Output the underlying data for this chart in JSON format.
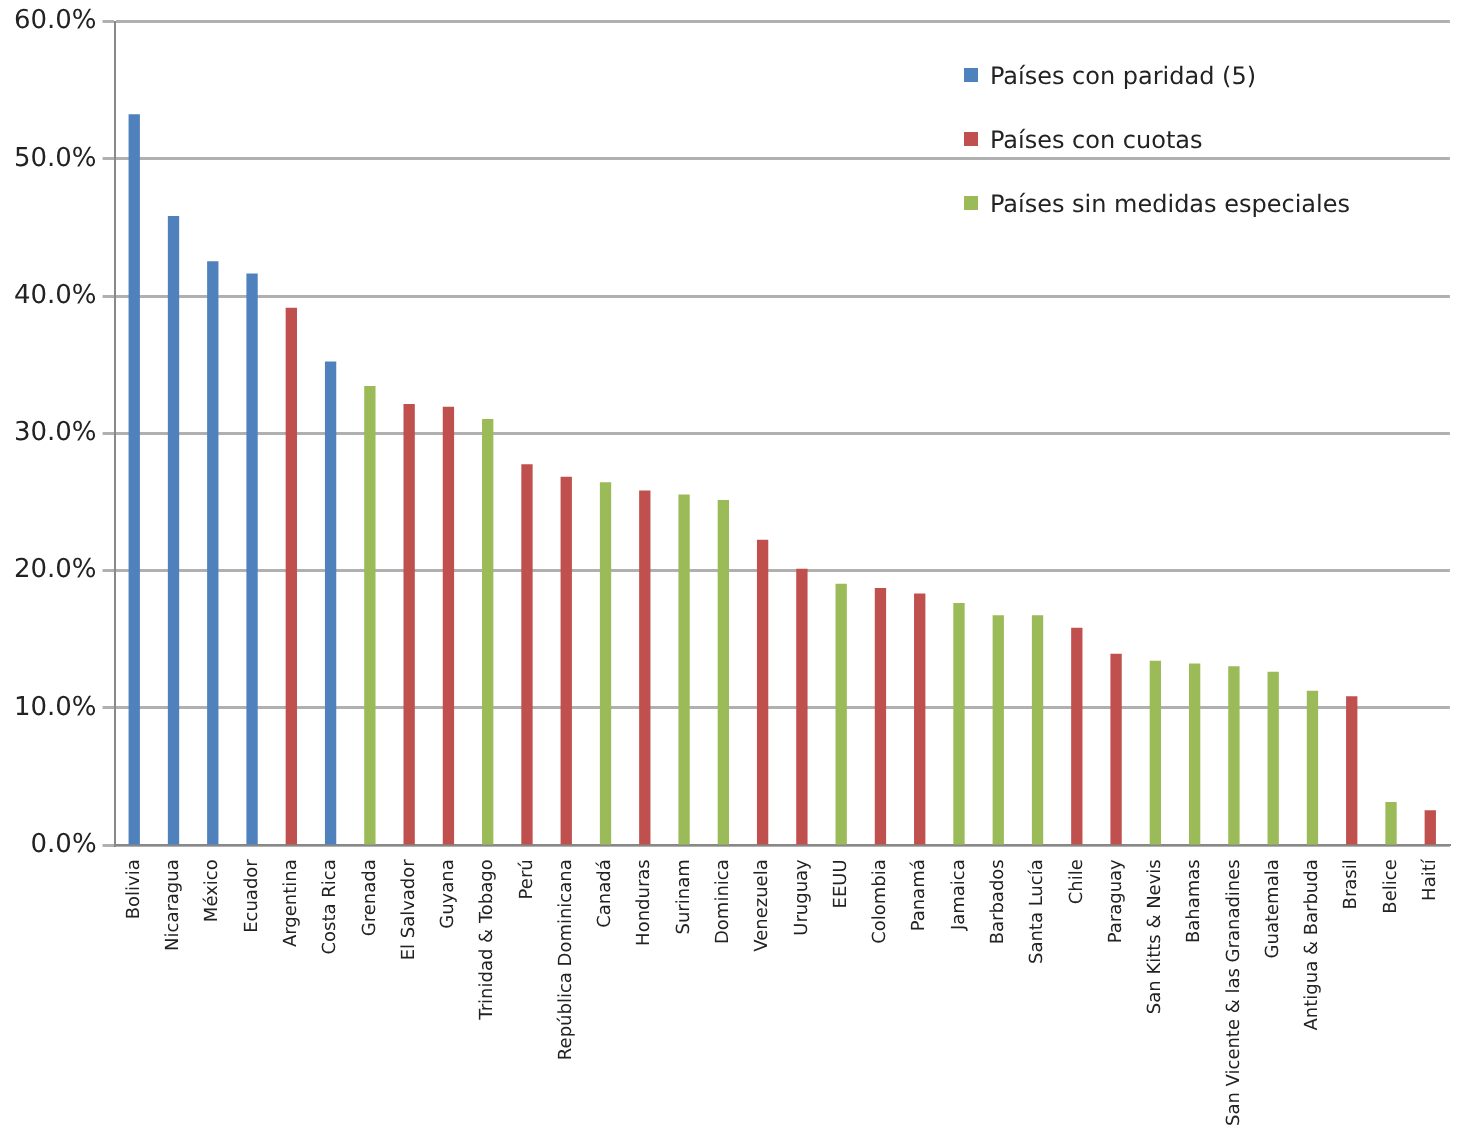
{
  "chart_data": {
    "type": "bar",
    "categories": [
      "Bolivia",
      "Nicaragua",
      "México",
      "Ecuador",
      "Argentina",
      "Costa Rica",
      "Grenada",
      "El Salvador",
      "Guyana",
      "Trinidad & Tobago",
      "Perú",
      "República Dominicana",
      "Canadá",
      "Honduras",
      "Surinam",
      "Dominica",
      "Venezuela",
      "Uruguay",
      "EEUU",
      "Colombia",
      "Panamá",
      "Jamaica",
      "Barbados",
      "Santa Lucía",
      "Chile",
      "Paraguay",
      "San Kitts & Nevis",
      "Bahamas",
      "San Vicente & las Granadines",
      "Guatemala",
      "Antigua & Barbuda",
      "Brasil",
      "Belice",
      "Haití"
    ],
    "series": [
      {
        "name": "Países con paridad (5)",
        "color": "#4f81bd",
        "values": [
          53.2,
          45.8,
          42.5,
          41.6,
          null,
          35.2,
          null,
          null,
          null,
          null,
          null,
          null,
          null,
          null,
          null,
          null,
          null,
          null,
          null,
          null,
          null,
          null,
          null,
          null,
          null,
          null,
          null,
          null,
          null,
          null,
          null,
          null,
          null,
          null
        ]
      },
      {
        "name": "Países con cuotas",
        "color": "#c0504d",
        "values": [
          null,
          null,
          null,
          null,
          39.1,
          null,
          null,
          32.1,
          31.9,
          null,
          27.7,
          26.8,
          null,
          25.8,
          null,
          null,
          22.2,
          20.1,
          null,
          18.7,
          18.3,
          null,
          null,
          null,
          15.8,
          13.9,
          null,
          null,
          null,
          null,
          null,
          10.8,
          null,
          2.5
        ]
      },
      {
        "name": "Países sin medidas especiales",
        "color": "#9bbb59",
        "values": [
          null,
          null,
          null,
          null,
          null,
          null,
          33.4,
          null,
          null,
          31.0,
          null,
          null,
          26.4,
          null,
          25.5,
          25.1,
          null,
          null,
          19.0,
          null,
          null,
          17.6,
          16.7,
          16.7,
          null,
          null,
          13.4,
          13.2,
          13.0,
          12.6,
          11.2,
          null,
          3.1,
          null
        ]
      }
    ],
    "ylim": [
      0,
      60
    ],
    "yticks": [
      {
        "value": 0,
        "label": "0.0%"
      },
      {
        "value": 10,
        "label": "10.0%"
      },
      {
        "value": 20,
        "label": "20.0%"
      },
      {
        "value": 30,
        "label": "30.0%"
      },
      {
        "value": 40,
        "label": "40.0%"
      },
      {
        "value": 50,
        "label": "50.0%"
      },
      {
        "value": 60,
        "label": "60.0%"
      }
    ],
    "grid": "y",
    "legend": "top right"
  }
}
